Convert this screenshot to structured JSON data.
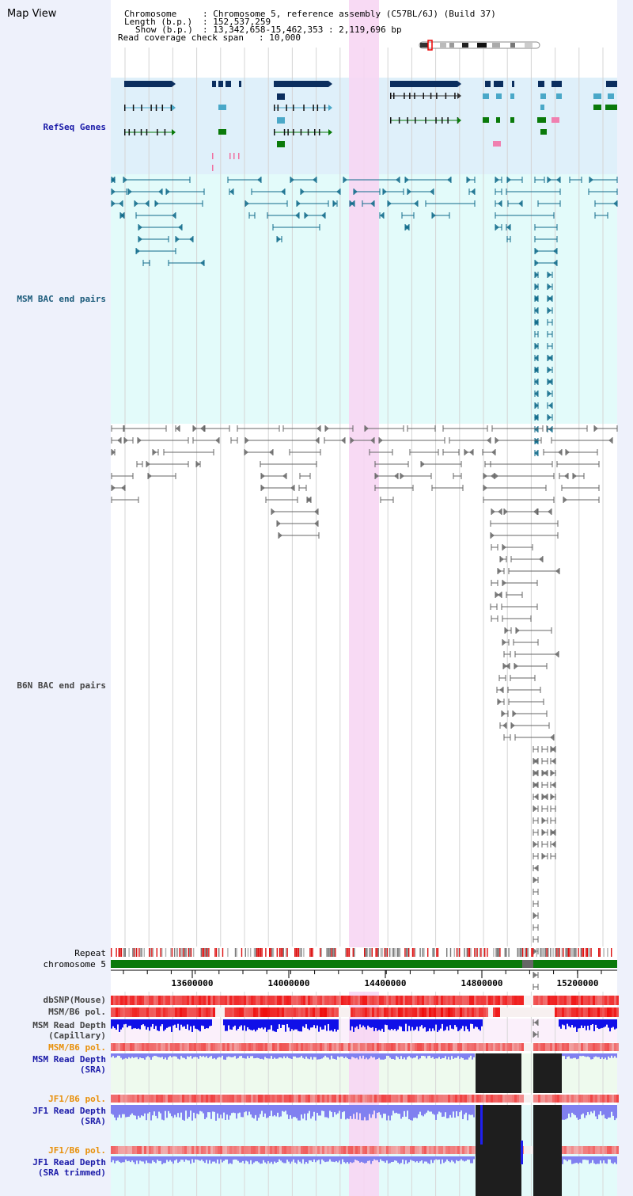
{
  "title": "Map View",
  "info": {
    "chromosome_key": "Chromosome",
    "chromosome_value": ": Chromosome 5, reference assembly (C57BL/6J) (Build 37)",
    "length_key": "Length (b.p.)",
    "length_value": ": 152,537,259",
    "show_key": "Show (b.p.)",
    "show_value": ": 13,342,658-15,462,353 : 2,119,696 bp",
    "coverage_key": "Read coverage check span",
    "coverage_value": ": 10,000"
  },
  "tracks": {
    "refseq": "RefSeq Genes",
    "msm_bac": "MSM BAC end pairs",
    "b6n_bac": "B6N BAC end pairs",
    "repeat": "Repeat",
    "chromosome": "chromosome 5",
    "dbsnp": "dbSNP(Mouse)",
    "msm_b6_pol": "MSM/B6 pol.",
    "msm_depth_cap_1": "MSM Read Depth",
    "msm_depth_cap_2": "(Capillary)",
    "msm_b6_pol_sra": "MSM/B6 pol.",
    "msm_depth_sra_1": "MSM Read Depth",
    "msm_depth_sra_2": "(SRA)",
    "jf1_b6_pol": "JF1/B6 pol.",
    "jf1_depth_sra_1": "JF1 Read Depth",
    "jf1_depth_sra_2": "(SRA)",
    "jf1_b6_pol_2": "JF1/B6 pol.",
    "jf1_depth_trim_1": "JF1 Read Depth",
    "jf1_depth_trim_2": "(SRA trimmed)"
  },
  "axis": {
    "ticks": [
      "13600000",
      "14000000",
      "14400000",
      "14800000",
      "15200000"
    ]
  },
  "colors": {
    "refseq_label": "#1a1aa8",
    "msm_label": "#1a5a7a",
    "b6n_label": "#444444",
    "orange_label": "#e8900a",
    "blue_label": "#1a1aa8",
    "highlight": "#f7d6f3",
    "gene_dark": "#0b2e5e",
    "gene_light": "#4aa8c8",
    "gene_green": "#0a7a0a",
    "msm_feature": "#0f6a8a",
    "b6n_feature": "#666666",
    "chrom_green": "#0b7a0b",
    "depth_blue": "#1010e8",
    "depth_light": "#8080f0"
  }
}
